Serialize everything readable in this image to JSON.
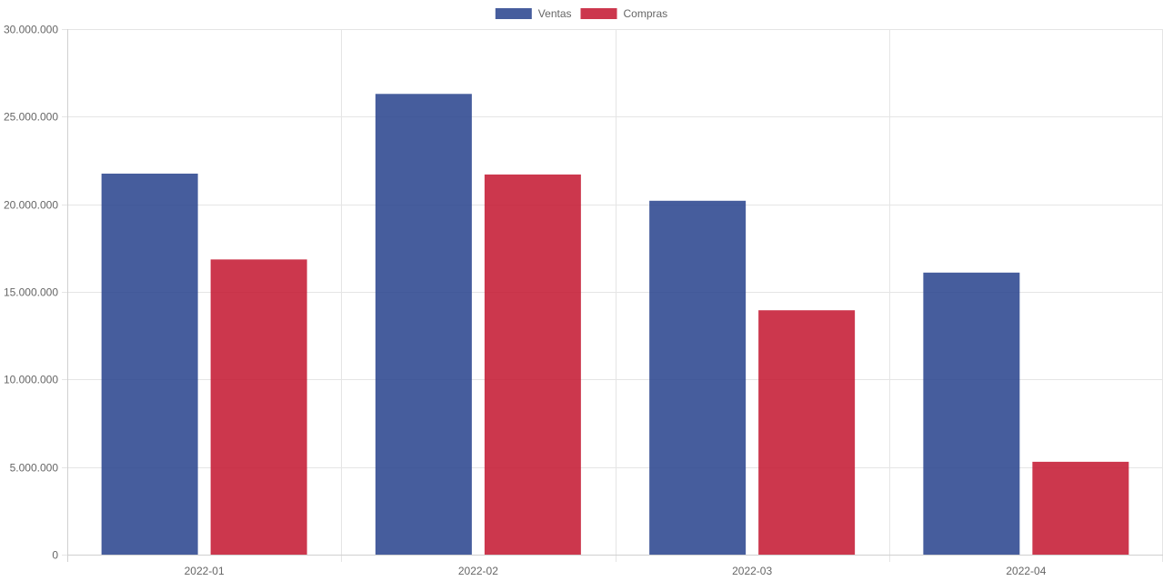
{
  "chart_data": {
    "type": "bar",
    "title": "",
    "xlabel": "",
    "ylabel": "",
    "categories": [
      "2022-01",
      "2022-02",
      "2022-03",
      "2022-04"
    ],
    "series": [
      {
        "name": "Ventas",
        "color": "#2c4790",
        "values": [
          21750000,
          26300000,
          20200000,
          16100000
        ]
      },
      {
        "name": "Compras",
        "color": "#c51b34",
        "values": [
          16850000,
          21700000,
          13950000,
          5300000
        ]
      }
    ],
    "ylim": [
      0,
      30000000
    ],
    "yticks": [
      0,
      5000000,
      10000000,
      15000000,
      20000000,
      25000000,
      30000000
    ],
    "ytick_labels": [
      "0",
      "5.000.000",
      "10.000.000",
      "15.000.000",
      "20.000.000",
      "25.000.000",
      "30.000.000"
    ],
    "grid": true,
    "legend_position": "top-center"
  }
}
